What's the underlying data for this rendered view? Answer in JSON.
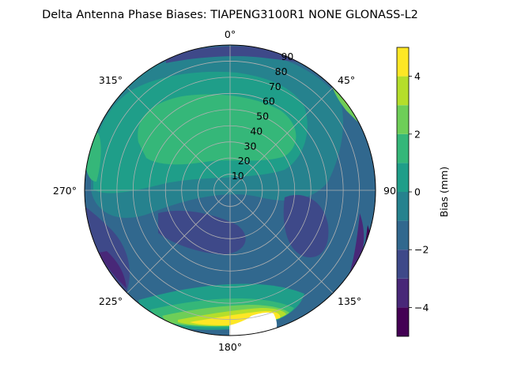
{
  "chart_data": {
    "type": "heatmap",
    "projection": "polar",
    "title": "Delta Antenna Phase Biases: TIAPENG3100R1   NONE GLONASS-L2",
    "angular_ticks": [
      {
        "deg": 0,
        "label": "0°"
      },
      {
        "deg": 45,
        "label": "45°"
      },
      {
        "deg": 90,
        "label": "90°"
      },
      {
        "deg": 135,
        "label": "135°"
      },
      {
        "deg": 180,
        "label": "180°"
      },
      {
        "deg": 225,
        "label": "225°"
      },
      {
        "deg": 270,
        "label": "270°"
      },
      {
        "deg": 315,
        "label": "315°"
      }
    ],
    "radial_ticks": [
      "10",
      "20",
      "30",
      "40",
      "50",
      "60",
      "70",
      "80",
      "90"
    ],
    "radial_range": [
      0,
      90
    ],
    "grid": true,
    "colorbar": {
      "label": "Bias (mm)",
      "range": [
        -5,
        5
      ],
      "levels": [
        -5,
        -4,
        -3,
        -2,
        -1,
        0,
        1,
        2,
        3,
        4,
        5
      ],
      "tick_values": [
        -4,
        -2,
        0,
        2,
        4
      ],
      "tick_labels": [
        "−4",
        "−2",
        "0",
        "2",
        "4"
      ],
      "colors": [
        "#440154",
        "#482878",
        "#3e4989",
        "#31688e",
        "#26828e",
        "#1f9e89",
        "#35b779",
        "#6ece58",
        "#b5de2b",
        "#fde725"
      ]
    }
  }
}
